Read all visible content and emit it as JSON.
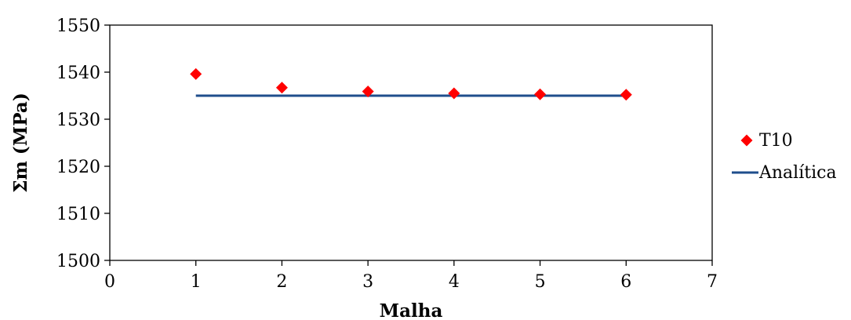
{
  "chart_data": {
    "type": "scatter",
    "xlabel": "Malha",
    "ylabel": "Σm (MPa)",
    "xlim": [
      0,
      7
    ],
    "ylim": [
      1500,
      1550
    ],
    "x_ticks": [
      "0",
      "1",
      "2",
      "3",
      "4",
      "5",
      "6",
      "7"
    ],
    "y_ticks": [
      "1500",
      "1510",
      "1520",
      "1530",
      "1540",
      "1550"
    ],
    "grid": false,
    "legend_position": "right",
    "series": [
      {
        "name": "T10",
        "kind": "scatter",
        "marker": "diamond",
        "color": "#ff0000",
        "x": [
          1,
          2,
          3,
          4,
          5,
          6
        ],
        "y": [
          1539.6,
          1536.7,
          1535.9,
          1535.5,
          1535.3,
          1535.2
        ]
      },
      {
        "name": "Analítica",
        "kind": "line",
        "color": "#1f4e8c",
        "x": [
          1,
          6
        ],
        "y": [
          1535.0,
          1535.0
        ]
      }
    ]
  }
}
